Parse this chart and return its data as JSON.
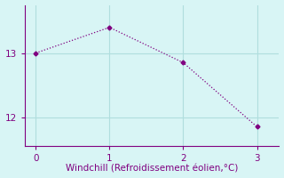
{
  "x": [
    0,
    1,
    2,
    3
  ],
  "y": [
    13.0,
    13.4,
    12.85,
    11.85
  ],
  "line_color": "#800080",
  "marker": "D",
  "marker_size": 2.5,
  "marker_color": "#800080",
  "bg_color": "#d8f5f5",
  "grid_color": "#b0dede",
  "axis_color": "#800080",
  "xlabel": "Windchill (Refroidissement éolien,°C)",
  "xlabel_fontsize": 7.5,
  "xlim": [
    -0.15,
    3.3
  ],
  "ylim": [
    11.55,
    13.75
  ],
  "xticks": [
    0,
    1,
    2,
    3
  ],
  "yticks": [
    12,
    13
  ],
  "tick_color": "#800080",
  "tick_fontsize": 7.5,
  "linewidth": 0.9,
  "linestyle": ":"
}
